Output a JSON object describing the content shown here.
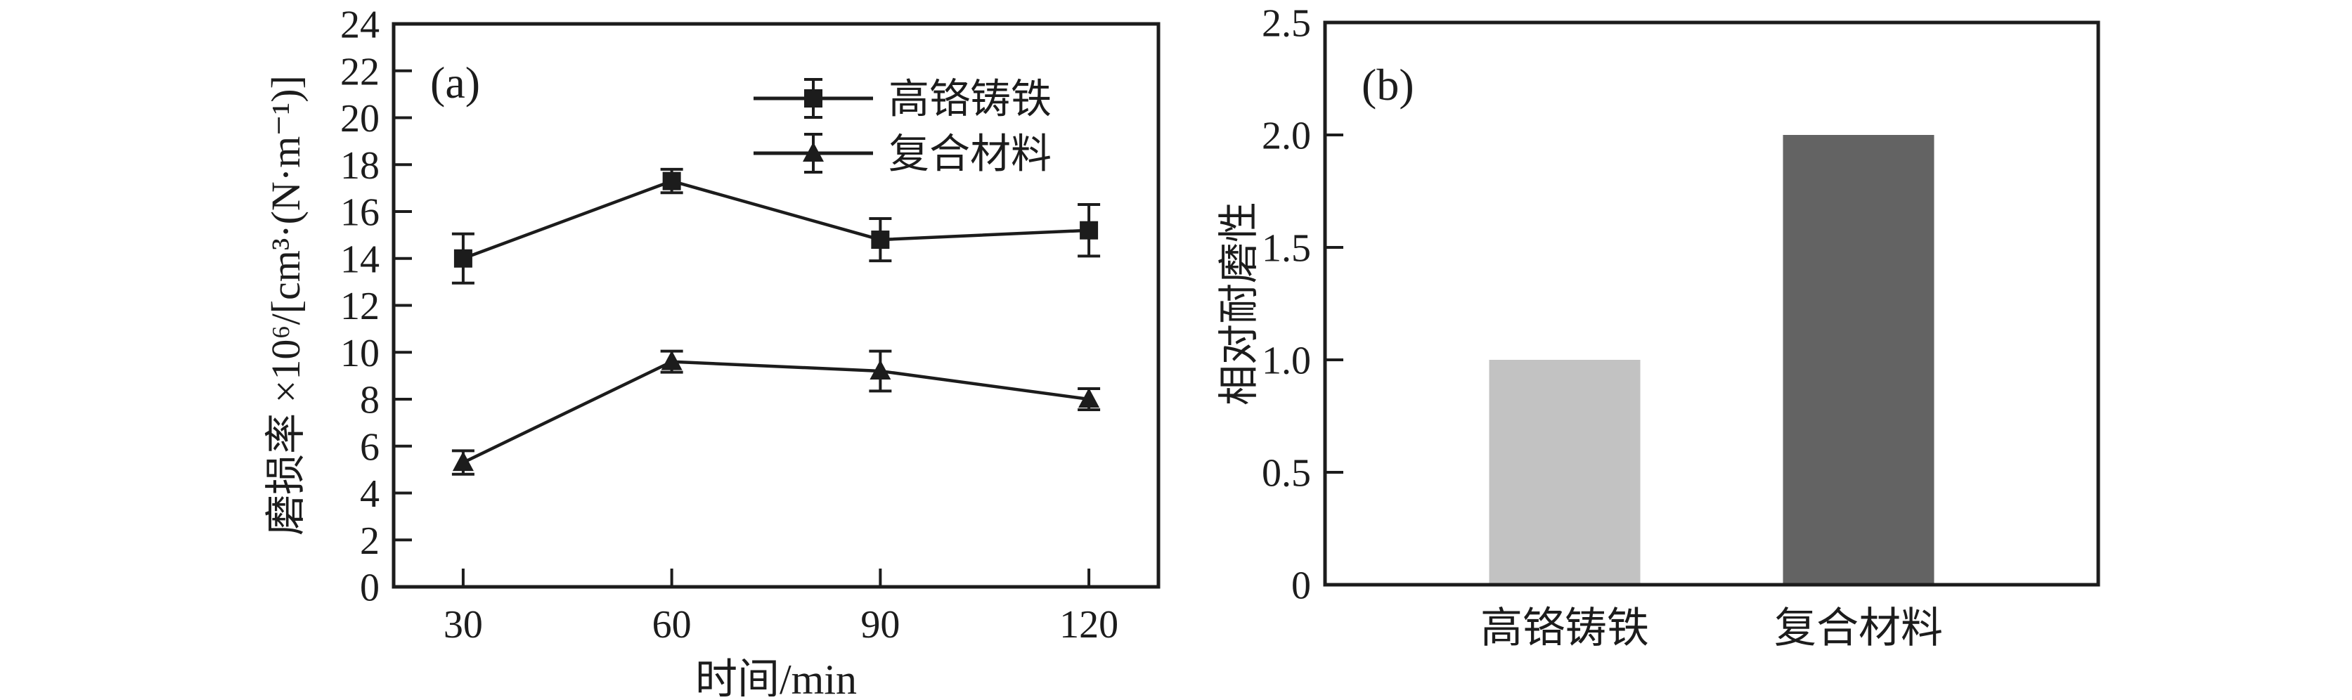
{
  "figure": {
    "background": "#ffffff",
    "ink_color": "#1c1c1c"
  },
  "chart_data": [
    {
      "id": "a",
      "type": "line",
      "panel_label": "(a)",
      "title": "",
      "xlabel": "时间/min",
      "ylabel": "磨损率 ×10⁶/[cm³·(N·m⁻¹)]",
      "x": [
        30,
        60,
        90,
        120
      ],
      "xticks": [
        "30",
        "60",
        "90",
        "120"
      ],
      "xlim": [
        20,
        130
      ],
      "ylim": [
        0,
        24
      ],
      "ytick_step": 2,
      "yticks": [
        "0",
        "2",
        "4",
        "6",
        "8",
        "10",
        "12",
        "14",
        "16",
        "18",
        "20",
        "22",
        "24"
      ],
      "grid": false,
      "legend_position": "upper-center",
      "series": [
        {
          "name": "高铬铸铁",
          "marker": "square",
          "color": "#1c1c1c",
          "values": [
            14.0,
            17.3,
            14.8,
            15.2
          ],
          "errors": [
            1.05,
            0.5,
            0.9,
            1.1
          ]
        },
        {
          "name": "复合材料",
          "marker": "triangle",
          "color": "#1c1c1c",
          "values": [
            5.3,
            9.6,
            9.2,
            8.0
          ],
          "errors": [
            0.5,
            0.45,
            0.85,
            0.45
          ]
        }
      ]
    },
    {
      "id": "b",
      "type": "bar",
      "panel_label": "(b)",
      "title": "",
      "xlabel": "",
      "ylabel": "相对耐磨性",
      "categories": [
        "高铬铸铁",
        "复合材料"
      ],
      "values": [
        1.0,
        2.0
      ],
      "bar_colors": [
        "#c2c2c2",
        "#636363"
      ],
      "ylim": [
        0,
        2.5
      ],
      "ytick_step": 0.5,
      "yticks": [
        "0",
        "0.5",
        "1.0",
        "1.5",
        "2.0",
        "2.5"
      ],
      "grid": false,
      "legend_position": "none"
    }
  ]
}
